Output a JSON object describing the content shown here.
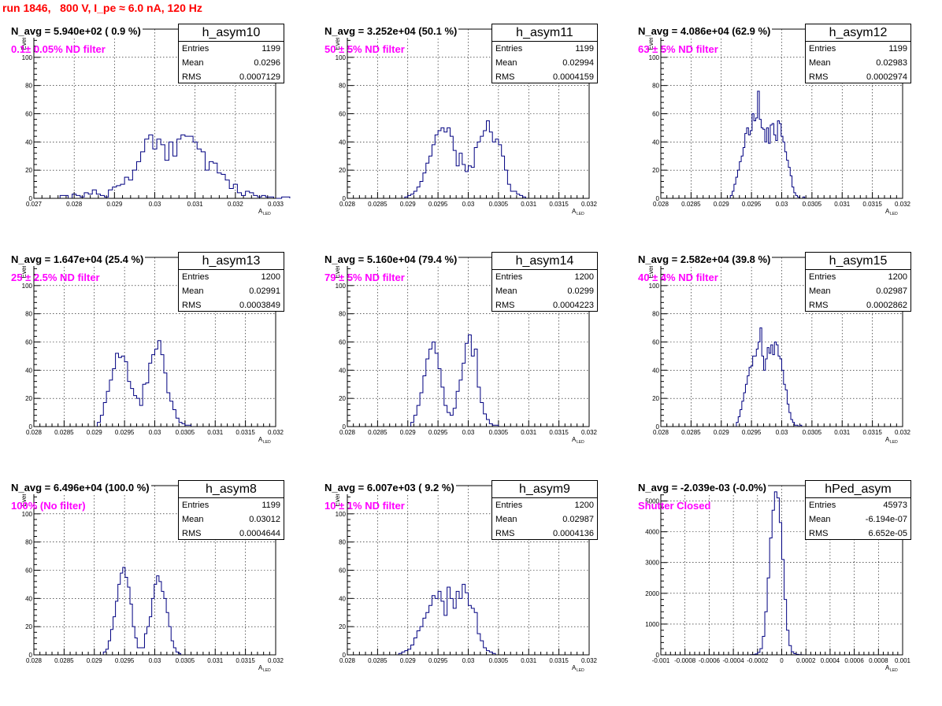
{
  "title": "run 1846,   800 V, I_pe ≈ 6.0 nA, 120 Hz",
  "stat_labels": {
    "entries": "Entries",
    "mean": "Mean",
    "rms": "RMS"
  },
  "chart_data": [
    {
      "type": "bar",
      "name": "h_asym10",
      "navg": "N_avg = 5.940e+02 ( 0.9 %)",
      "annotation": "0.1± 0.05% ND filter",
      "entries": "1199",
      "mean": "0.0296",
      "rms": "0.0007129",
      "xlim": [
        0.027,
        0.033
      ],
      "ylim": [
        0,
        120
      ],
      "xlabel": "A",
      "xlabel_sub": "LED",
      "ylabel": "Events",
      "xticks": [
        0.027,
        0.028,
        0.029,
        0.03,
        0.031,
        0.032,
        0.033
      ],
      "xtick_labels": [
        "0.027",
        "0.028",
        "0.029",
        "0.03",
        "0.031",
        "0.032",
        "0.033"
      ],
      "yticks": [
        0,
        20,
        40,
        60,
        80,
        100,
        120
      ],
      "ytick_labels": [
        "0",
        "20",
        "40",
        "60",
        "80",
        "100",
        "120"
      ],
      "x_start": 0.02765,
      "bin_width": 0.0001,
      "values": [
        2,
        2,
        0,
        3,
        2,
        1,
        4,
        3,
        6,
        3,
        2,
        1,
        6,
        8,
        9,
        10,
        15,
        13,
        20,
        26,
        33,
        42,
        45,
        35,
        42,
        38,
        27,
        40,
        30,
        42,
        45,
        44,
        44,
        40,
        35,
        33,
        20,
        26,
        25,
        18,
        17,
        13,
        7,
        10,
        4,
        2,
        5,
        4,
        2,
        1,
        2,
        1,
        1,
        0,
        0,
        1,
        1
      ]
    },
    {
      "type": "bar",
      "name": "h_asym11",
      "navg": "N_avg = 3.252e+04 (50.1 %)",
      "annotation": "50 ± 5% ND filter",
      "entries": "1199",
      "mean": "0.02994",
      "rms": "0.0004159",
      "xlim": [
        0.028,
        0.032
      ],
      "ylim": [
        0,
        120
      ],
      "xlabel": "A",
      "xlabel_sub": "LED",
      "ylabel": "Events",
      "xticks": [
        0.028,
        0.0285,
        0.029,
        0.0295,
        0.03,
        0.0305,
        0.031,
        0.0315,
        0.032
      ],
      "xtick_labels": [
        "0.028",
        "0.0285",
        "0.029",
        "0.0295",
        "0.03",
        "0.0305",
        "0.031",
        "0.0315",
        "0.032"
      ],
      "yticks": [
        0,
        20,
        40,
        60,
        80,
        100,
        120
      ],
      "ytick_labels": [
        "0",
        "20",
        "40",
        "60",
        "80",
        "100",
        "120"
      ],
      "x_start": 0.02895,
      "bin_width": 5e-05,
      "values": [
        1,
        2,
        3,
        5,
        8,
        12,
        18,
        25,
        30,
        38,
        45,
        48,
        50,
        47,
        50,
        44,
        34,
        23,
        32,
        24,
        19,
        23,
        22,
        36,
        40,
        44,
        48,
        55,
        47,
        40,
        42,
        38,
        30,
        20,
        10,
        5,
        5,
        3,
        2,
        1
      ]
    },
    {
      "type": "bar",
      "name": "h_asym12",
      "navg": "N_avg = 4.086e+04 (62.9 %)",
      "annotation": "63 ± 5% ND filter",
      "entries": "1199",
      "mean": "0.02983",
      "rms": "0.0002974",
      "xlim": [
        0.028,
        0.032
      ],
      "ylim": [
        0,
        120
      ],
      "xlabel": "A",
      "xlabel_sub": "LED",
      "ylabel": "Events",
      "xticks": [
        0.028,
        0.0285,
        0.029,
        0.0295,
        0.03,
        0.0305,
        0.031,
        0.0315,
        0.032
      ],
      "xtick_labels": [
        "0.028",
        "0.0285",
        "0.029",
        "0.0295",
        "0.03",
        "0.0305",
        "0.031",
        "0.0315",
        "0.032"
      ],
      "yticks": [
        0,
        20,
        40,
        60,
        80,
        100,
        120
      ],
      "ytick_labels": [
        "0",
        "20",
        "40",
        "60",
        "80",
        "100",
        "120"
      ],
      "x_start": 0.02915,
      "bin_width": 3e-05,
      "values": [
        2,
        5,
        10,
        15,
        20,
        26,
        30,
        36,
        46,
        50,
        45,
        48,
        60,
        55,
        57,
        76,
        56,
        50,
        49,
        40,
        50,
        39,
        52,
        53,
        45,
        41,
        55,
        53,
        44,
        40,
        33,
        27,
        22,
        16,
        8,
        4,
        2,
        1,
        0,
        0,
        1
      ]
    },
    {
      "type": "bar",
      "name": "h_asym13",
      "navg": "N_avg = 1.647e+04 (25.4 %)",
      "annotation": "25 ± 2.5% ND filter",
      "entries": "1200",
      "mean": "0.02991",
      "rms": "0.0003849",
      "xlim": [
        0.028,
        0.032
      ],
      "ylim": [
        0,
        120
      ],
      "xlabel": "A",
      "xlabel_sub": "LED",
      "ylabel": "Events",
      "xticks": [
        0.028,
        0.0285,
        0.029,
        0.0295,
        0.03,
        0.0305,
        0.031,
        0.0315,
        0.032
      ],
      "xtick_labels": [
        "0.028",
        "0.0285",
        "0.029",
        "0.0295",
        "0.03",
        "0.0305",
        "0.031",
        "0.0315",
        "0.032"
      ],
      "yticks": [
        0,
        20,
        40,
        60,
        80,
        100,
        120
      ],
      "ytick_labels": [
        "0",
        "20",
        "40",
        "60",
        "80",
        "100",
        "120"
      ],
      "x_start": 0.02905,
      "bin_width": 5e-05,
      "values": [
        3,
        8,
        17,
        25,
        33,
        41,
        52,
        49,
        50,
        46,
        32,
        27,
        22,
        20,
        15,
        30,
        31,
        45,
        51,
        55,
        61,
        51,
        38,
        24,
        18,
        12,
        6,
        3,
        2,
        1,
        1
      ]
    },
    {
      "type": "bar",
      "name": "h_asym14",
      "navg": "N_avg = 5.160e+04 (79.4 %)",
      "annotation": "79 ± 5% ND filter",
      "entries": "1200",
      "mean": "0.0299",
      "rms": "0.0004223",
      "xlim": [
        0.028,
        0.032
      ],
      "ylim": [
        0,
        120
      ],
      "xlabel": "A",
      "xlabel_sub": "LED",
      "ylabel": "Events",
      "xticks": [
        0.028,
        0.0285,
        0.029,
        0.0295,
        0.03,
        0.0305,
        0.031,
        0.0315,
        0.032
      ],
      "xtick_labels": [
        "0.028",
        "0.0285",
        "0.029",
        "0.0295",
        "0.03",
        "0.0305",
        "0.031",
        "0.0315",
        "0.032"
      ],
      "yticks": [
        0,
        20,
        40,
        60,
        80,
        100,
        120
      ],
      "ytick_labels": [
        "0",
        "20",
        "40",
        "60",
        "80",
        "100",
        "120"
      ],
      "x_start": 0.02905,
      "bin_width": 5e-05,
      "values": [
        3,
        8,
        15,
        24,
        36,
        48,
        55,
        60,
        52,
        41,
        28,
        15,
        10,
        8,
        13,
        25,
        33,
        45,
        59,
        65,
        50,
        55,
        28,
        17,
        9,
        5,
        2,
        1,
        1
      ]
    },
    {
      "type": "bar",
      "name": "h_asym15",
      "navg": "N_avg = 2.582e+04 (39.8 %)",
      "annotation": "40 ± 4% ND filter",
      "entries": "1200",
      "mean": "0.02987",
      "rms": "0.0002862",
      "xlim": [
        0.028,
        0.032
      ],
      "ylim": [
        0,
        120
      ],
      "xlabel": "A",
      "xlabel_sub": "LED",
      "ylabel": "Events",
      "xticks": [
        0.028,
        0.0285,
        0.029,
        0.0295,
        0.03,
        0.0305,
        0.031,
        0.0315,
        0.032
      ],
      "xtick_labels": [
        "0.028",
        "0.0285",
        "0.029",
        "0.0295",
        "0.03",
        "0.0305",
        "0.031",
        "0.0315",
        "0.032"
      ],
      "yticks": [
        0,
        20,
        40,
        60,
        80,
        100,
        120
      ],
      "ytick_labels": [
        "0",
        "20",
        "40",
        "60",
        "80",
        "100",
        "120"
      ],
      "x_start": 0.02925,
      "bin_width": 3e-05,
      "values": [
        3,
        7,
        12,
        18,
        24,
        30,
        36,
        42,
        43,
        50,
        50,
        55,
        60,
        70,
        50,
        40,
        48,
        56,
        52,
        58,
        51,
        60,
        58,
        50,
        48,
        40,
        30,
        26,
        16,
        10,
        5,
        3,
        1,
        1,
        0,
        1
      ]
    },
    {
      "type": "bar",
      "name": "h_asym8",
      "navg": "N_avg = 6.496e+04 (100.0 %)",
      "annotation": "100% (No filter)",
      "entries": "1199",
      "mean": "0.03012",
      "rms": "0.0004644",
      "xlim": [
        0.028,
        0.032
      ],
      "ylim": [
        0,
        120
      ],
      "xlabel": "A",
      "xlabel_sub": "LED",
      "ylabel": "Events",
      "xticks": [
        0.028,
        0.0285,
        0.029,
        0.0295,
        0.03,
        0.0305,
        0.031,
        0.0315,
        0.032
      ],
      "xtick_labels": [
        "0.028",
        "0.0285",
        "0.029",
        "0.0295",
        "0.03",
        "0.0305",
        "0.031",
        "0.0315",
        "0.032"
      ],
      "yticks": [
        0,
        20,
        40,
        60,
        80,
        100,
        120
      ],
      "ytick_labels": [
        "0",
        "20",
        "40",
        "60",
        "80",
        "100",
        "120"
      ],
      "x_start": 0.02915,
      "bin_width": 4e-05,
      "values": [
        2,
        4,
        10,
        18,
        27,
        38,
        50,
        58,
        62,
        55,
        48,
        36,
        20,
        12,
        5,
        5,
        5,
        15,
        20,
        27,
        40,
        50,
        56,
        52,
        45,
        40,
        30,
        20,
        10,
        5,
        2,
        1
      ]
    },
    {
      "type": "bar",
      "name": "h_asym9",
      "navg": "N_avg = 6.007e+03 ( 9.2 %)",
      "annotation": "10 ± 1% ND filter",
      "entries": "1200",
      "mean": "0.02987",
      "rms": "0.0004136",
      "xlim": [
        0.028,
        0.032
      ],
      "ylim": [
        0,
        120
      ],
      "xlabel": "A",
      "xlabel_sub": "LED",
      "ylabel": "Events",
      "xticks": [
        0.028,
        0.0285,
        0.029,
        0.0295,
        0.03,
        0.0305,
        0.031,
        0.0315,
        0.032
      ],
      "xtick_labels": [
        "0.028",
        "0.0285",
        "0.029",
        "0.0295",
        "0.03",
        "0.0305",
        "0.031",
        "0.0315",
        "0.032"
      ],
      "yticks": [
        0,
        20,
        40,
        60,
        80,
        100,
        120
      ],
      "ytick_labels": [
        "0",
        "20",
        "40",
        "60",
        "80",
        "100",
        "120"
      ],
      "x_start": 0.02885,
      "bin_width": 5e-05,
      "values": [
        1,
        2,
        3,
        4,
        7,
        12,
        17,
        20,
        26,
        30,
        35,
        42,
        40,
        45,
        38,
        28,
        48,
        40,
        33,
        45,
        40,
        50,
        44,
        35,
        33,
        30,
        15,
        10,
        5,
        3,
        2,
        1
      ]
    },
    {
      "type": "bar",
      "name": "hPed_asym",
      "navg": "N_avg = -2.039e-03 (-0.0%)",
      "annotation": "Shutter Closed",
      "entries": "45973",
      "mean": "-6.194e-07",
      "rms": "6.652e-05",
      "xlim": [
        -0.001,
        0.001
      ],
      "ylim": [
        0,
        5500
      ],
      "xlabel": "A",
      "xlabel_sub": "LED",
      "ylabel": "",
      "xticks": [
        -0.001,
        -0.0008,
        -0.0006,
        -0.0004,
        -0.0002,
        0,
        0.0002,
        0.0004,
        0.0006,
        0.0008,
        0.001
      ],
      "xtick_labels": [
        "-0.001",
        "-0.0008",
        "-0.0006",
        "-0.0004",
        "-0.0002",
        "0",
        "0.0002",
        "0.0004",
        "0.0006",
        "0.0008",
        "0.001"
      ],
      "yticks": [
        0,
        1000,
        2000,
        3000,
        4000,
        5000
      ],
      "ytick_labels": [
        "0",
        "1000",
        "2000",
        "3000",
        "4000",
        "5000"
      ],
      "x_start": -0.00026,
      "bin_width": 2e-05,
      "values": [
        5,
        10,
        30,
        80,
        200,
        600,
        1400,
        2500,
        3800,
        4700,
        5300,
        5100,
        4300,
        3100,
        1800,
        800,
        300,
        100,
        40,
        15,
        5,
        2,
        1
      ]
    }
  ]
}
